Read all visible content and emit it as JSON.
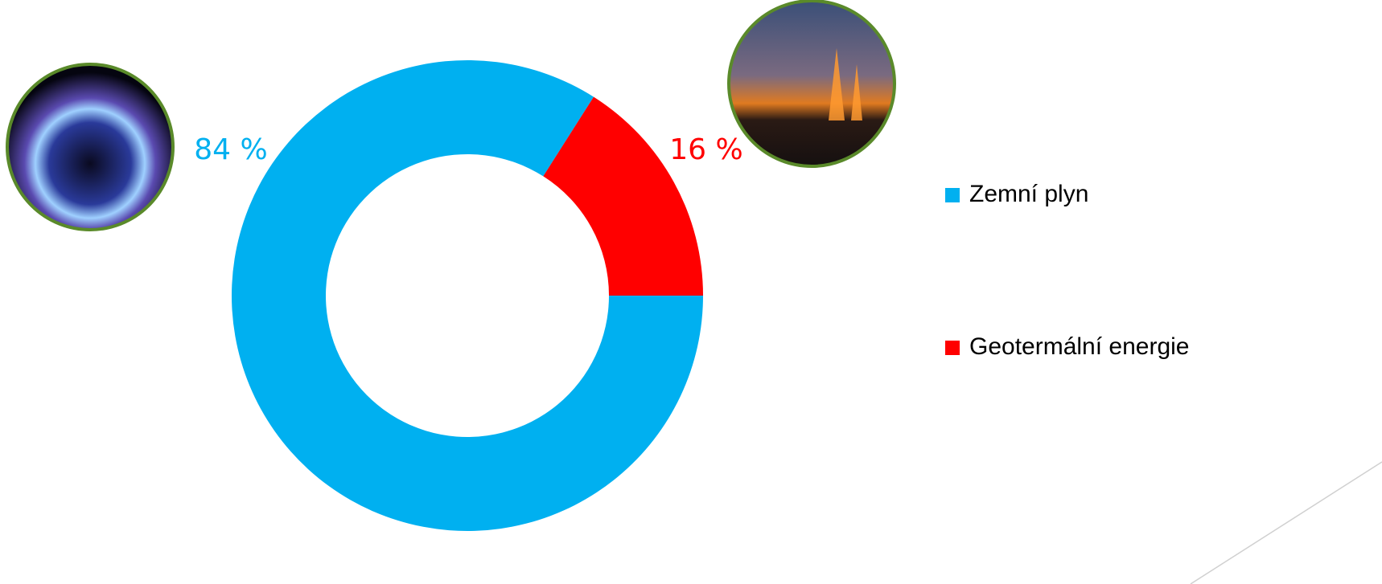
{
  "chart_data": {
    "type": "donut",
    "categories": [
      "Zemní plyn",
      "Geotermální energie"
    ],
    "values": [
      84,
      16
    ],
    "value_labels": [
      "84 %",
      "16 %"
    ],
    "colors": [
      "#00b0f0",
      "#ff0000"
    ],
    "legend": "right"
  }
}
